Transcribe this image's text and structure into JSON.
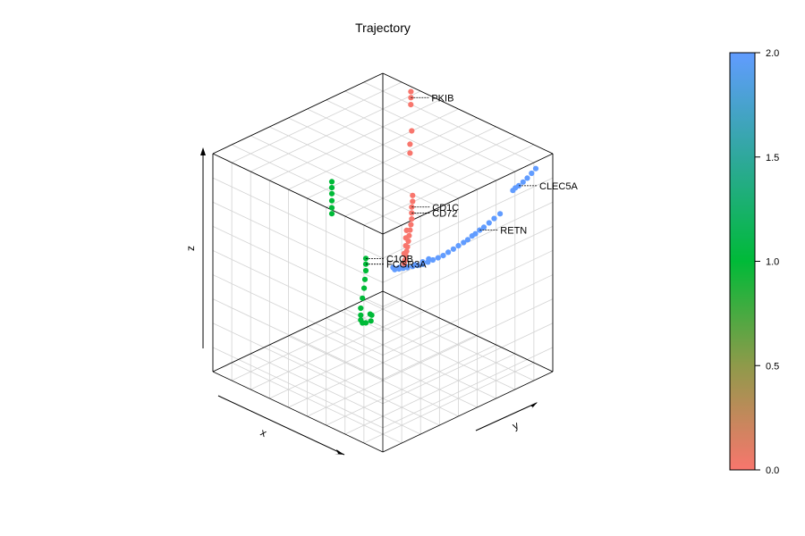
{
  "chart_data": {
    "type": "scatter",
    "projection": "3d",
    "title": "Trajectory",
    "xlabel": "x",
    "ylabel": "y",
    "zlabel": "z",
    "grid": true,
    "colorbar": {
      "min": 0.0,
      "max": 2.0,
      "ticks": [
        "0.0",
        "0.5",
        "1.0",
        "1.5",
        "2.0"
      ],
      "tick_values": [
        0.0,
        0.5,
        1.0,
        1.5,
        2.0
      ],
      "colors": [
        "#F8766D",
        "#00BA38",
        "#619CFF"
      ],
      "placement": "right"
    },
    "series": [
      {
        "color_value": 2.0,
        "color": "#619CFF",
        "points": [
          [
            -0.95,
            0.85,
            0.9
          ],
          [
            -0.93,
            0.82,
            0.86
          ],
          [
            -0.91,
            0.79,
            0.82
          ],
          [
            -0.88,
            0.77,
            0.78
          ],
          [
            -0.86,
            0.74,
            0.75
          ],
          [
            -0.84,
            0.72,
            0.73
          ],
          [
            -0.83,
            0.7,
            0.71
          ],
          [
            -0.76,
            0.62,
            0.5
          ],
          [
            -0.73,
            0.58,
            0.46
          ],
          [
            -0.7,
            0.55,
            0.42
          ],
          [
            -0.67,
            0.52,
            0.38
          ],
          [
            -0.64,
            0.5,
            0.35
          ],
          [
            -0.62,
            0.47,
            0.32
          ],
          [
            -0.6,
            0.45,
            0.3
          ],
          [
            -0.58,
            0.42,
            0.27
          ],
          [
            -0.55,
            0.4,
            0.24
          ],
          [
            -0.52,
            0.37,
            0.21
          ],
          [
            -0.49,
            0.34,
            0.18
          ],
          [
            -0.46,
            0.31,
            0.15
          ],
          [
            -0.43,
            0.28,
            0.12
          ],
          [
            -0.4,
            0.25,
            0.1
          ],
          [
            -0.37,
            0.22,
            0.08
          ],
          [
            -0.34,
            0.19,
            0.06
          ],
          [
            -0.31,
            0.16,
            0.04
          ],
          [
            -0.28,
            0.13,
            0.03
          ],
          [
            -0.25,
            0.1,
            0.02
          ],
          [
            -0.22,
            0.07,
            0.01
          ],
          [
            -0.19,
            0.05,
            0.0
          ],
          [
            -0.16,
            0.03,
            -0.01
          ],
          [
            -0.13,
            0.01,
            -0.02
          ],
          [
            -0.36,
            0.18,
            0.1
          ],
          [
            -0.32,
            0.15,
            0.07
          ],
          [
            -0.27,
            0.11,
            0.04
          ],
          [
            -0.21,
            0.06,
            0.02
          ],
          [
            -0.17,
            0.02,
            0.01
          ],
          [
            -0.12,
            0.0,
            0.0
          ]
        ]
      },
      {
        "color_value": 0.0,
        "color": "#F8766D",
        "points": [
          [
            0.62,
            0.95,
            0.99
          ],
          [
            0.6,
            0.93,
            0.95
          ],
          [
            0.58,
            0.91,
            0.9
          ],
          [
            0.52,
            0.86,
            0.7
          ],
          [
            0.5,
            0.82,
            0.6
          ],
          [
            0.47,
            0.79,
            0.54
          ],
          [
            0.05,
            0.4,
            0.45
          ],
          [
            0.03,
            0.38,
            0.41
          ],
          [
            0.02,
            0.36,
            0.37
          ],
          [
            0.0,
            0.34,
            0.33
          ],
          [
            -0.02,
            0.32,
            0.29
          ],
          [
            -0.03,
            0.3,
            0.25
          ],
          [
            -0.04,
            0.28,
            0.21
          ],
          [
            -0.05,
            0.26,
            0.17
          ],
          [
            -0.06,
            0.24,
            0.13
          ],
          [
            -0.07,
            0.22,
            0.09
          ],
          [
            -0.08,
            0.2,
            0.06
          ],
          [
            -0.09,
            0.18,
            0.03
          ],
          [
            -0.1,
            0.16,
            0.0
          ],
          [
            -0.11,
            0.14,
            -0.02
          ],
          [
            -0.01,
            0.27,
            0.2
          ],
          [
            -0.03,
            0.24,
            0.15
          ],
          [
            -0.06,
            0.21,
            0.1
          ],
          [
            -0.08,
            0.17,
            0.05
          ]
        ]
      },
      {
        "color_value": 1.0,
        "color": "#00BA38",
        "points": [
          [
            0.9,
            0.3,
            0.3
          ],
          [
            0.88,
            0.28,
            0.26
          ],
          [
            0.86,
            0.26,
            0.22
          ],
          [
            0.84,
            0.24,
            0.17
          ],
          [
            0.82,
            0.22,
            0.12
          ],
          [
            0.8,
            0.2,
            0.08
          ],
          [
            0.45,
            0.25,
            -0.22
          ],
          [
            0.42,
            0.22,
            -0.25
          ],
          [
            0.38,
            0.18,
            -0.28
          ],
          [
            0.33,
            0.12,
            -0.32
          ],
          [
            0.28,
            0.06,
            -0.36
          ],
          [
            0.22,
            -0.02,
            -0.4
          ],
          [
            0.16,
            -0.1,
            -0.44
          ],
          [
            0.1,
            -0.16,
            -0.46
          ],
          [
            0.04,
            -0.22,
            -0.46
          ],
          [
            -0.02,
            -0.26,
            -0.45
          ],
          [
            -0.08,
            -0.28,
            -0.42
          ],
          [
            -0.14,
            -0.28,
            -0.38
          ],
          [
            -0.1,
            -0.23,
            -0.36
          ],
          [
            -0.05,
            -0.2,
            -0.38
          ]
        ]
      }
    ],
    "annotations": [
      {
        "text": "PKIB",
        "point": [
          0.6,
          0.93,
          0.95
        ]
      },
      {
        "text": "CLEC5A",
        "point": [
          -0.86,
          0.74,
          0.75
        ]
      },
      {
        "text": "RETN",
        "point": [
          -0.64,
          0.5,
          0.35
        ]
      },
      {
        "text": "CD1C",
        "point": [
          0.02,
          0.36,
          0.37
        ]
      },
      {
        "text": "CD72",
        "point": [
          0.0,
          0.34,
          0.33
        ]
      },
      {
        "text": "C1QB",
        "point": [
          0.45,
          0.25,
          -0.22
        ]
      },
      {
        "text": "FCGR3A",
        "point": [
          0.42,
          0.22,
          -0.25
        ]
      }
    ]
  }
}
